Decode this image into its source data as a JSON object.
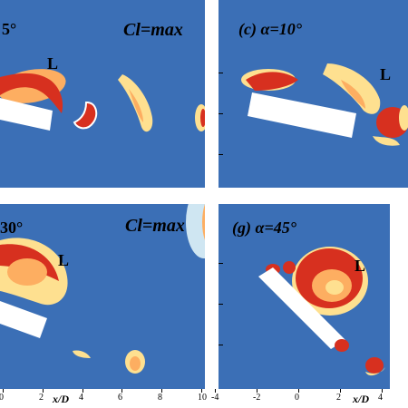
{
  "panels": [
    {
      "id": "tl",
      "tag_right": "5°",
      "cl_label": "Cl=max",
      "vortex_label": "L"
    },
    {
      "id": "tr",
      "paren": "(c)",
      "alpha": "α=10°",
      "vortex_label": "L"
    },
    {
      "id": "bl",
      "tag_right": "30°",
      "cl_label": "Cl=max",
      "vortex_label": "L"
    },
    {
      "id": "br",
      "paren": "(g)",
      "alpha": "α=45°",
      "vortex_label": "L"
    }
  ],
  "xaxis": {
    "left_ticks": [
      "0",
      "2",
      "4",
      "6",
      "8",
      "10"
    ],
    "right_ticks": [
      "-4",
      "-2",
      "0",
      "2",
      "4"
    ],
    "xlabel": "x/D"
  },
  "colors": {
    "background": "#3b6fb6",
    "hot": "#d7301f",
    "warm": "#fdae61",
    "light": "#fee090",
    "pale": "#e0f3f8"
  }
}
